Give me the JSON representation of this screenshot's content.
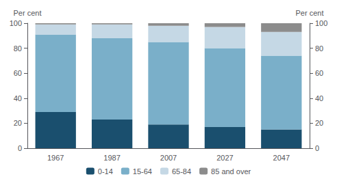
{
  "chart_data": {
    "type": "bar",
    "stacked": true,
    "categories": [
      "1967",
      "1987",
      "2007",
      "2027",
      "2047"
    ],
    "series": [
      {
        "name": "0-14",
        "color": "#1a4f6e",
        "values": [
          29,
          23,
          19,
          17,
          15
        ]
      },
      {
        "name": "15-64",
        "color": "#7aafc9",
        "values": [
          62,
          65,
          66,
          63,
          59
        ]
      },
      {
        "name": "65-84",
        "color": "#c5d8e5",
        "values": [
          8,
          11,
          13,
          17,
          19
        ]
      },
      {
        "name": "85 and over",
        "color": "#8c8c8c",
        "values": [
          1,
          1,
          2,
          3,
          7
        ]
      }
    ],
    "ylabel": "Per cent",
    "y2label": "Per cent",
    "ylim": [
      0,
      100
    ],
    "yticks": [
      0,
      20,
      40,
      60,
      80,
      100
    ],
    "y2lim": [
      0,
      100
    ],
    "y2ticks": [
      0,
      20,
      40,
      60,
      80,
      100
    ],
    "grid": false,
    "legend": "bottom"
  }
}
